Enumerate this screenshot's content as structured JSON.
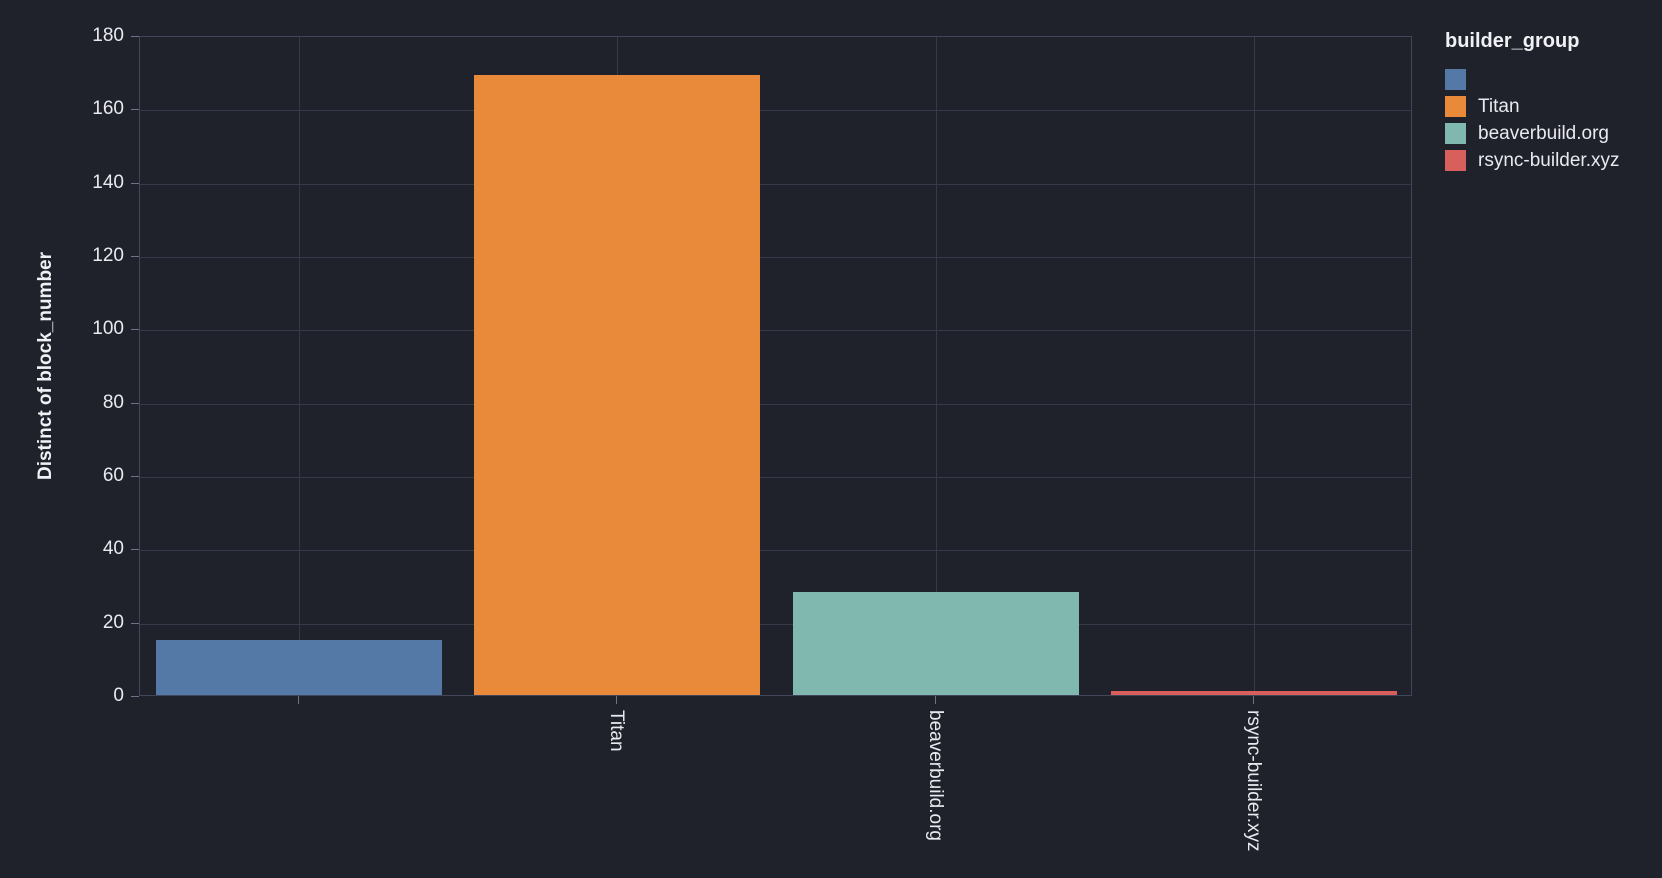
{
  "chart_data": {
    "type": "bar",
    "categories": [
      "",
      "Titan",
      "beaverbuild.org",
      "rsync-builder.xyz"
    ],
    "values": [
      15,
      169,
      28,
      1
    ],
    "bar_colors": [
      "#5579A7",
      "#E98A3A",
      "#80B7AF",
      "#D85F5B"
    ],
    "title": "",
    "xlabel": "",
    "ylabel": "Distinct of block_number",
    "ylim": [
      0,
      180
    ],
    "ytick_step": 20,
    "ytick_labels": [
      "0",
      "20",
      "40",
      "60",
      "80",
      "100",
      "120",
      "140",
      "160",
      "180"
    ],
    "grid": true,
    "legend_position": "right"
  },
  "legend": {
    "title": "builder_group",
    "items": [
      {
        "label": "",
        "color": "#5579A7"
      },
      {
        "label": "Titan",
        "color": "#E98A3A"
      },
      {
        "label": "beaverbuild.org",
        "color": "#80B7AF"
      },
      {
        "label": "rsync-builder.xyz",
        "color": "#D85F5B"
      }
    ]
  },
  "colors": {
    "background": "#1F212B",
    "gridline": "#353949",
    "axis_border": "#41465A",
    "tick_mark": "#6E7487",
    "tick_text": "#E9EAEF",
    "title_text": "#F0F1F4"
  }
}
